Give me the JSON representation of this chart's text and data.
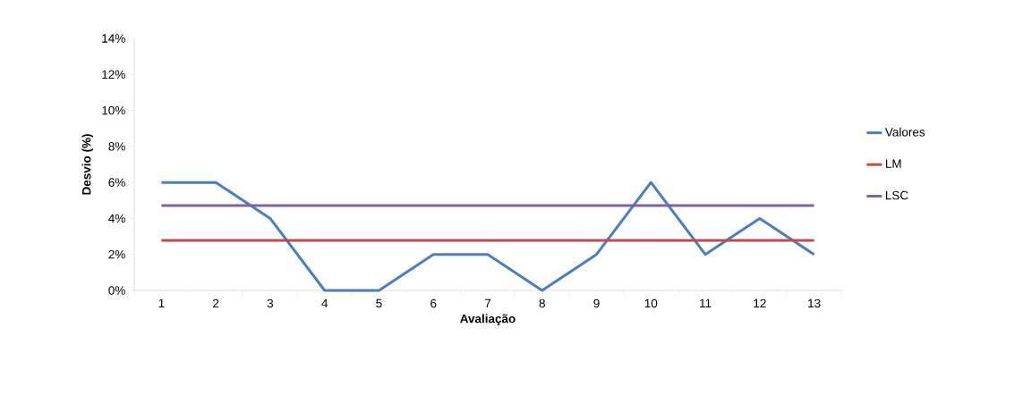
{
  "chart_data": {
    "type": "line",
    "xlabel": "Avaliação",
    "ylabel": "Desvio (%)",
    "categories": [
      "1",
      "2",
      "3",
      "4",
      "5",
      "6",
      "7",
      "8",
      "9",
      "10",
      "11",
      "12",
      "13"
    ],
    "series": [
      {
        "name": "Valores",
        "color": "#4a7ebb",
        "values": [
          6,
          6,
          4,
          0,
          0,
          2,
          2,
          0,
          2,
          6,
          2,
          4,
          2
        ]
      },
      {
        "name": "LM",
        "color": "#be4b48",
        "values": [
          2.78,
          2.78,
          2.78,
          2.78,
          2.78,
          2.78,
          2.78,
          2.78,
          2.78,
          2.78,
          2.78,
          2.78,
          2.78
        ]
      },
      {
        "name": "LSC",
        "color": "#7e62a1",
        "values": [
          4.72,
          4.72,
          4.72,
          4.72,
          4.72,
          4.72,
          4.72,
          4.72,
          4.72,
          4.72,
          4.72,
          4.72,
          4.72
        ]
      }
    ],
    "ylim": [
      0,
      14
    ],
    "yticks": [
      {
        "value": 0,
        "label": "0%"
      },
      {
        "value": 2,
        "label": "2%"
      },
      {
        "value": 4,
        "label": "4%"
      },
      {
        "value": 6,
        "label": "6%"
      },
      {
        "value": 8,
        "label": "8%"
      },
      {
        "value": 10,
        "label": "10%"
      },
      {
        "value": 12,
        "label": "12%"
      },
      {
        "value": 14,
        "label": "14%"
      }
    ],
    "grid": false,
    "legend": "right",
    "marker": "none",
    "line_style": "solid"
  }
}
